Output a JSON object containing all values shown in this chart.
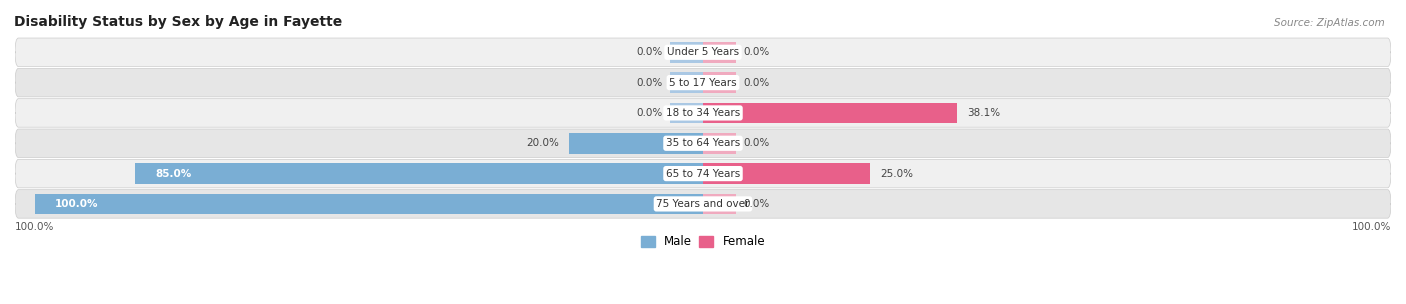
{
  "title": "Disability Status by Sex by Age in Fayette",
  "source": "Source: ZipAtlas.com",
  "categories": [
    "Under 5 Years",
    "5 to 17 Years",
    "18 to 34 Years",
    "35 to 64 Years",
    "65 to 74 Years",
    "75 Years and over"
  ],
  "male_values": [
    0.0,
    0.0,
    0.0,
    20.0,
    85.0,
    100.0
  ],
  "female_values": [
    0.0,
    0.0,
    38.1,
    0.0,
    25.0,
    0.0
  ],
  "male_color": "#7aaed4",
  "female_color": "#e8608a",
  "male_stub_color": "#aac8e4",
  "female_stub_color": "#f0aabf",
  "row_bg_even": "#f0f0f0",
  "row_bg_odd": "#e6e6e6",
  "max_value": 100.0,
  "stub_value": 5.0,
  "legend_male": "Male",
  "legend_female": "Female",
  "axis_label_left": "100.0%",
  "axis_label_right": "100.0%",
  "title_fontsize": 10,
  "source_fontsize": 7.5,
  "label_fontsize": 7.5,
  "cat_fontsize": 7.5
}
